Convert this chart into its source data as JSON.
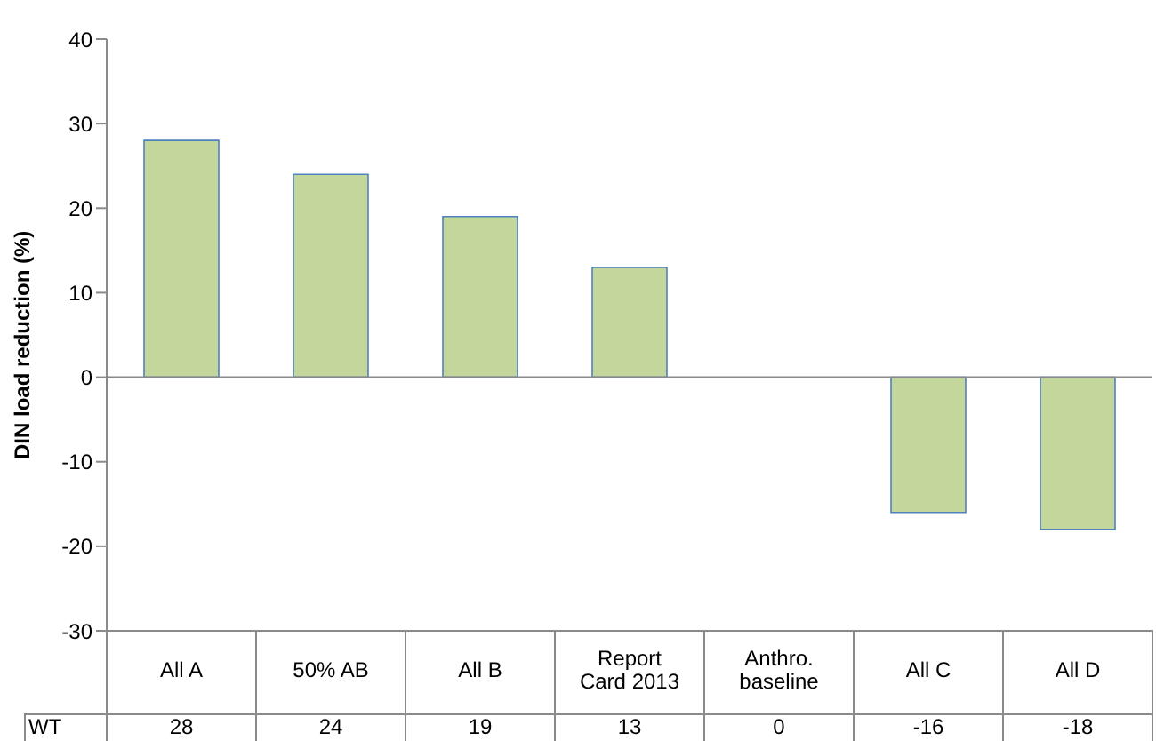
{
  "chart_data": {
    "type": "bar",
    "ylabel": "DIN load reduction (%)",
    "categories": [
      "All A",
      "50% AB",
      "All B",
      "Report Card 2013",
      "Anthro. baseline",
      "All C",
      "All D"
    ],
    "series": [
      {
        "name": "WT",
        "color": "#c3d69b",
        "values": [
          28,
          24,
          19,
          13,
          0,
          -16,
          -18
        ]
      }
    ],
    "ylim": [
      -30,
      40
    ],
    "yticks": [
      -30,
      -20,
      -10,
      0,
      10,
      20,
      30,
      40
    ],
    "ref_lines": [
      {
        "axis": "y",
        "value": 0,
        "color": "#8a8a8a"
      }
    ],
    "data_labels": true
  }
}
